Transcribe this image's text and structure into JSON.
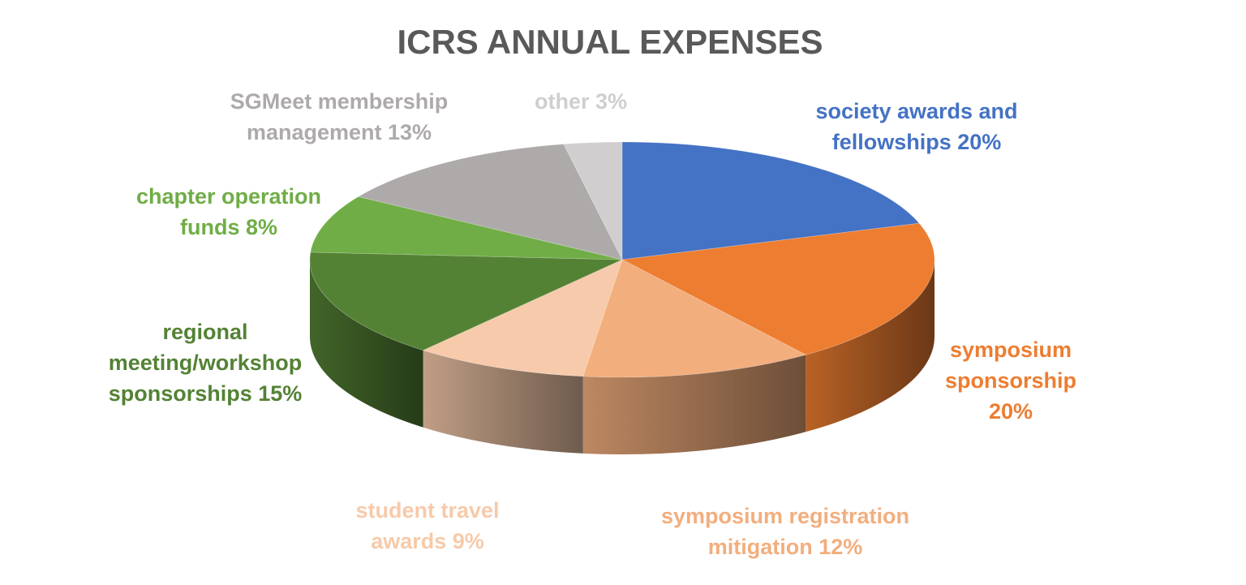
{
  "chart_data": {
    "type": "pie",
    "title": "ICRS ANNUAL EXPENSES",
    "three_d": true,
    "start_angle_deg": 90,
    "direction": "clockwise",
    "slices": [
      {
        "label_lines": [
          "society awards and",
          "fellowships 20%"
        ],
        "value": 20,
        "color": "#4472C4",
        "label_color": "#4472C4"
      },
      {
        "label_lines": [
          "symposium",
          "sponsorship",
          "20%"
        ],
        "value": 20,
        "color": "#ED7D31",
        "label_color": "#ED7D31"
      },
      {
        "label_lines": [
          "symposium registration",
          "mitigation 12%"
        ],
        "value": 12,
        "color": "#F2AE7D",
        "label_color": "#F2AE7D"
      },
      {
        "label_lines": [
          "student travel",
          "awards 9%"
        ],
        "value": 9,
        "color": "#F6CAAA",
        "label_color": "#F6CAAA"
      },
      {
        "label_lines": [
          "regional",
          "meeting/workshop",
          "sponsorships 15%"
        ],
        "value": 15,
        "color": "#548235",
        "label_color": "#548235"
      },
      {
        "label_lines": [
          "chapter operation",
          "funds 8%"
        ],
        "value": 8,
        "color": "#70AD47",
        "label_color": "#70AD47"
      },
      {
        "label_lines": [
          "SGMeet membership",
          "management 13%"
        ],
        "value": 13,
        "color": "#AEAAAA",
        "label_color": "#AEAAAA"
      },
      {
        "label_lines": [
          "other 3%"
        ],
        "value": 3,
        "color": "#D0CECE",
        "label_color": "#D0CECE"
      }
    ]
  }
}
